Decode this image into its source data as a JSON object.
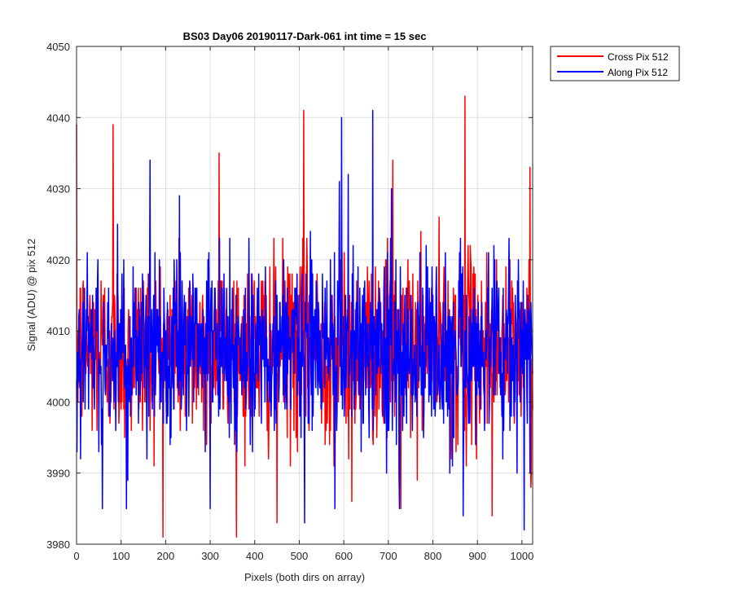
{
  "chart_data": {
    "type": "line",
    "title": "BS03 Day06 20190117-Dark-061 int time = 15 sec",
    "xlabel": "Pixels (both dirs on array)",
    "ylabel": "Signal (ADU) @ pix 512",
    "xlim": [
      0,
      1024
    ],
    "ylim": [
      3980,
      4050
    ],
    "xticks": [
      0,
      100,
      200,
      300,
      400,
      500,
      600,
      700,
      800,
      900,
      1000
    ],
    "yticks": [
      3980,
      3990,
      4000,
      4010,
      4020,
      4030,
      4040,
      4050
    ],
    "grid": true,
    "legend_position": "outside-top-right",
    "noise": {
      "mean": 4007.5,
      "sd": 6.5,
      "min": 3981,
      "max": 4044
    },
    "series": [
      {
        "name": "Cross Pix 512",
        "color": "#ff0000",
        "peaks": [
          [
            0,
            4039
          ],
          [
            82,
            4039
          ],
          [
            320,
            4035
          ],
          [
            510,
            4041
          ],
          [
            710,
            4034
          ],
          [
            872,
            4043
          ],
          [
            1018,
            4033
          ]
        ],
        "troughs": [
          [
            450,
            3983
          ],
          [
            618,
            3986
          ],
          [
            728,
            3985
          ],
          [
            933,
            3984
          ],
          [
            1020,
            3988
          ]
        ]
      },
      {
        "name": "Along Pix 512",
        "color": "#0000ff",
        "peaks": [
          [
            165,
            4034
          ],
          [
            595,
            4040
          ],
          [
            665,
            4041
          ],
          [
            590,
            4031
          ]
        ],
        "troughs": [
          [
            58,
            3985
          ],
          [
            112,
            3985
          ],
          [
            300,
            3985
          ],
          [
            512,
            3983
          ],
          [
            580,
            3985
          ],
          [
            725,
            3985
          ],
          [
            868,
            3984
          ],
          [
            1005,
            3982
          ]
        ]
      }
    ]
  }
}
